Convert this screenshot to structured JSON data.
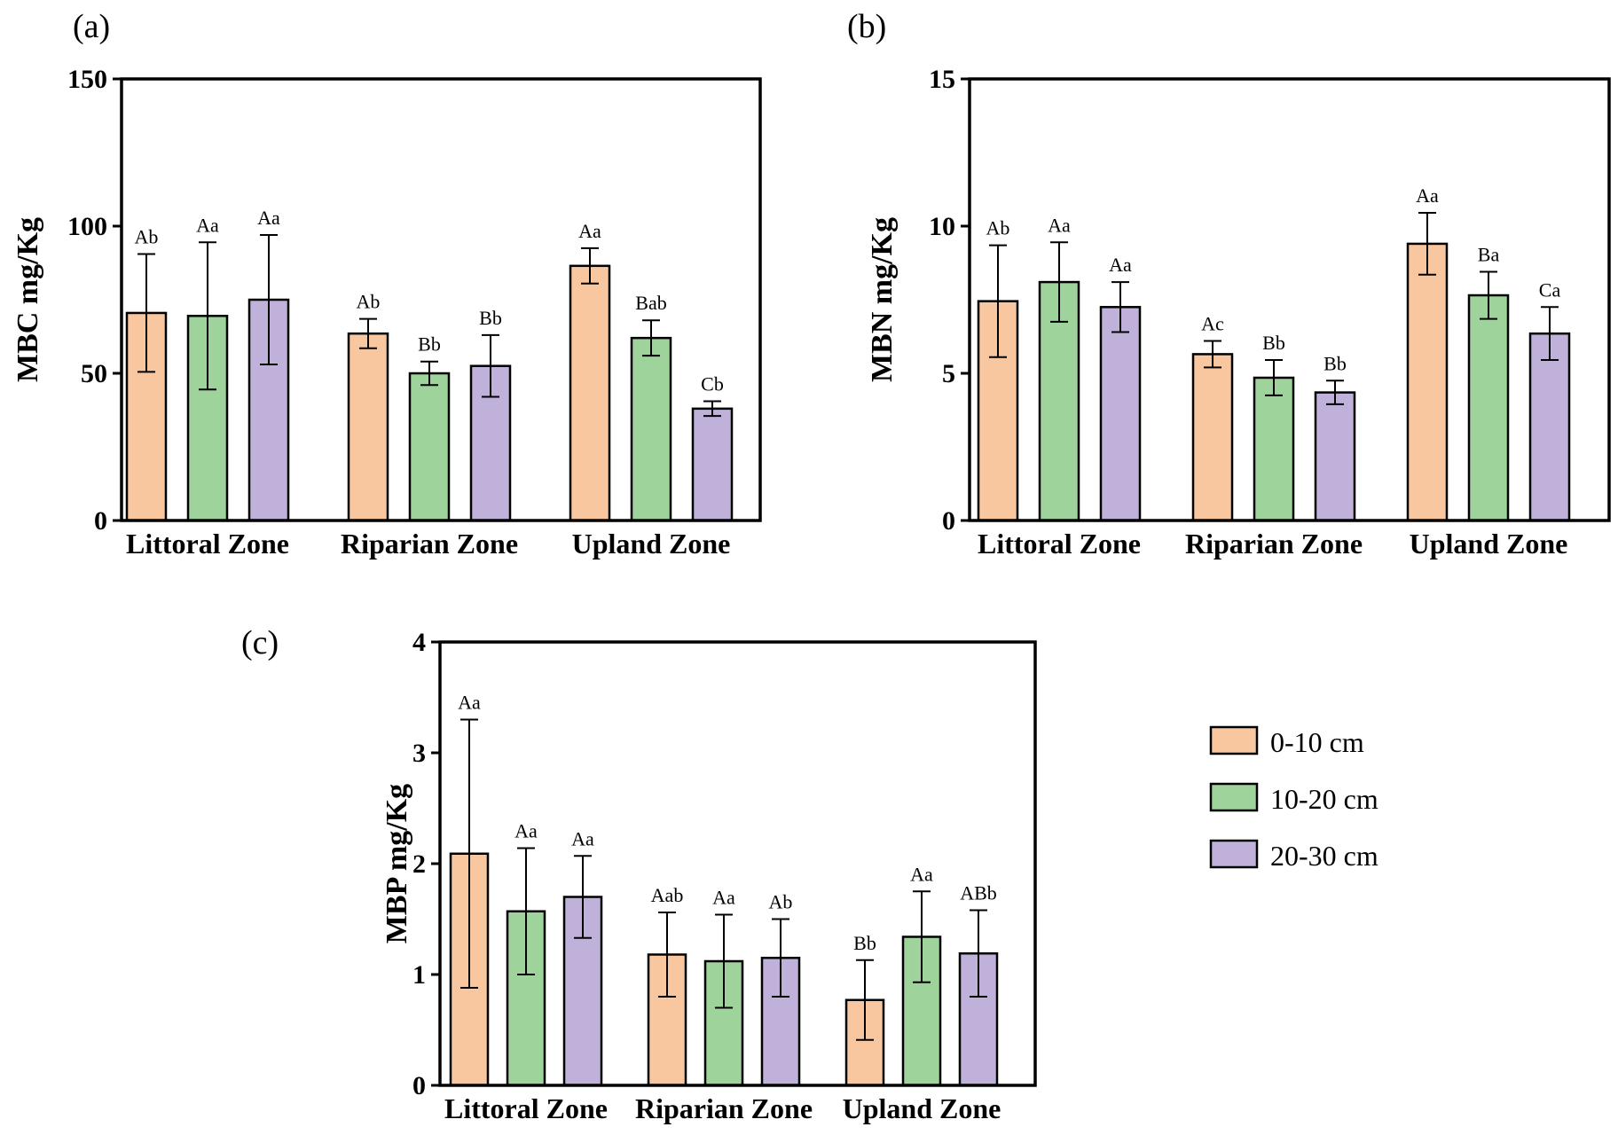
{
  "series_names": [
    "0-10 cm",
    "10-20 cm",
    "20-30 cm"
  ],
  "series_colors": [
    "#F8C79F",
    "#9ED39B",
    "#BFB1D9"
  ],
  "legend": {
    "items": [
      "0-10 cm",
      "10-20 cm",
      "20-30 cm"
    ]
  },
  "chart_data": [
    {
      "type": "bar",
      "panel": "(a)",
      "ylabel": "MBC mg/Kg",
      "xlabel": "",
      "categories": [
        "Littoral Zone",
        "Riparian Zone",
        "Upland Zone"
      ],
      "ylim": [
        0,
        150
      ],
      "yticks": [
        0,
        50,
        100,
        150
      ],
      "series": [
        {
          "name": "0-10 cm",
          "values": [
            70.5,
            63.5,
            86.5
          ],
          "errors": [
            20,
            5,
            6
          ],
          "labels": [
            "Ab",
            "Ab",
            "Aa"
          ]
        },
        {
          "name": "10-20 cm",
          "values": [
            69.5,
            50.0,
            62.0
          ],
          "errors": [
            25,
            4,
            6
          ],
          "labels": [
            "Aa",
            "Bb",
            "Bab"
          ]
        },
        {
          "name": "20-30 cm",
          "values": [
            75.0,
            52.5,
            38.0
          ],
          "errors": [
            22,
            10.5,
            2.5
          ],
          "labels": [
            "Aa",
            "Bb",
            "Cb"
          ]
        }
      ]
    },
    {
      "type": "bar",
      "panel": "(b)",
      "ylabel": "MBN mg/Kg",
      "xlabel": "",
      "categories": [
        "Littoral Zone",
        "Riparian Zone",
        "Upland Zone"
      ],
      "ylim": [
        0,
        15
      ],
      "yticks": [
        0,
        5,
        10,
        15
      ],
      "series": [
        {
          "name": "0-10 cm",
          "values": [
            7.45,
            5.65,
            9.4
          ],
          "errors": [
            1.9,
            0.45,
            1.05
          ],
          "labels": [
            "Ab",
            "Ac",
            "Aa"
          ]
        },
        {
          "name": "10-20 cm",
          "values": [
            8.1,
            4.85,
            7.65
          ],
          "errors": [
            1.35,
            0.6,
            0.8
          ],
          "labels": [
            "Aa",
            "Bb",
            "Ba"
          ]
        },
        {
          "name": "20-30 cm",
          "values": [
            7.25,
            4.35,
            6.35
          ],
          "errors": [
            0.85,
            0.4,
            0.9
          ],
          "labels": [
            "Aa",
            "Bb",
            "Ca"
          ]
        }
      ]
    },
    {
      "type": "bar",
      "panel": "(c)",
      "ylabel": "MBP mg/Kg",
      "xlabel": "",
      "categories": [
        "Littoral Zone",
        "Riparian Zone",
        "Upland Zone"
      ],
      "ylim": [
        0,
        4
      ],
      "yticks": [
        0,
        1,
        2,
        3,
        4
      ],
      "series": [
        {
          "name": "0-10 cm",
          "values": [
            2.09,
            1.18,
            0.77
          ],
          "errors": [
            1.21,
            0.38,
            0.36
          ],
          "labels": [
            "Aa",
            "Aab",
            "Bb"
          ]
        },
        {
          "name": "10-20 cm",
          "values": [
            1.57,
            1.12,
            1.34
          ],
          "errors": [
            0.57,
            0.42,
            0.41
          ],
          "labels": [
            "Aa",
            "Aa",
            "Aa"
          ]
        },
        {
          "name": "20-30 cm",
          "values": [
            1.7,
            1.15,
            1.19
          ],
          "errors": [
            0.37,
            0.35,
            0.39
          ],
          "labels": [
            "Aa",
            "Ab",
            "ABb"
          ]
        }
      ]
    }
  ]
}
